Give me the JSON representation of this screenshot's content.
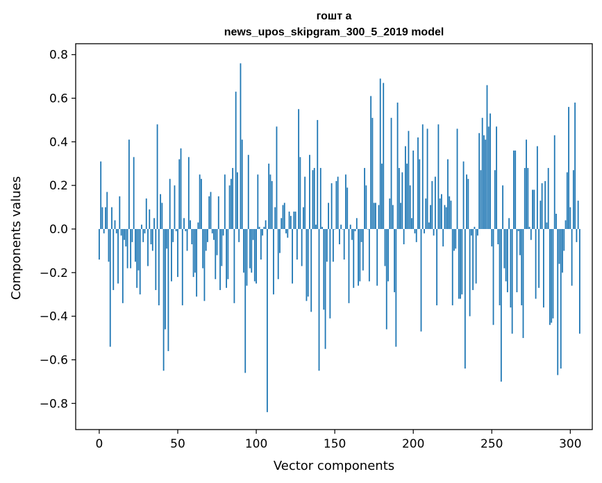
{
  "chart_data": {
    "type": "bar",
    "title_lines": [
      "гошт а",
      "news_upos_skipgram_300_5_2019 model"
    ],
    "xlabel": "Vector components",
    "ylabel": "Components values",
    "xlim": [
      -15,
      314
    ],
    "ylim": [
      -0.92,
      0.85
    ],
    "xticks": [
      0,
      50,
      100,
      150,
      200,
      250,
      300
    ],
    "yticks": [
      -0.8,
      -0.6,
      -0.4,
      -0.2,
      0.0,
      0.2,
      0.4,
      0.6,
      0.8
    ],
    "ytick_labels": [
      "−0.8",
      "−0.6",
      "−0.4",
      "−0.2",
      "0.0",
      "0.2",
      "0.4",
      "0.6",
      "0.8"
    ],
    "bar_color": "#1f77b4",
    "grid": false,
    "values": [
      -0.14,
      0.31,
      0.1,
      -0.02,
      0.1,
      0.17,
      -0.15,
      -0.54,
      0.1,
      -0.28,
      0.04,
      -0.02,
      -0.25,
      0.15,
      -0.03,
      -0.34,
      -0.05,
      -0.08,
      -0.18,
      0.41,
      -0.18,
      -0.06,
      0.33,
      -0.15,
      -0.27,
      -0.19,
      -0.3,
      0.02,
      -0.06,
      -0.02,
      0.14,
      -0.17,
      0.09,
      -0.07,
      -0.1,
      0.05,
      -0.28,
      0.48,
      -0.35,
      0.16,
      0.12,
      -0.65,
      -0.46,
      -0.09,
      -0.56,
      0.23,
      -0.24,
      -0.06,
      0.2,
      -0.01,
      -0.22,
      0.32,
      0.37,
      -0.35,
      0.05,
      -0.01,
      -0.1,
      0.33,
      0.04,
      -0.07,
      -0.22,
      -0.2,
      -0.31,
      0.03,
      0.25,
      0.23,
      -0.18,
      -0.33,
      -0.1,
      -0.06,
      0.15,
      0.17,
      -0.02,
      -0.05,
      -0.23,
      -0.12,
      0.15,
      -0.28,
      -0.17,
      -0.03,
      0.25,
      -0.27,
      -0.23,
      0.2,
      0.23,
      0.28,
      -0.34,
      0.63,
      0.26,
      -0.06,
      0.76,
      0.41,
      -0.2,
      -0.66,
      -0.26,
      0.34,
      -0.18,
      -0.2,
      -0.05,
      -0.24,
      -0.25,
      0.25,
      0.01,
      -0.14,
      -0.03,
      0.01,
      0.04,
      -0.84,
      0.3,
      0.25,
      0.22,
      -0.3,
      0.1,
      0.47,
      -0.23,
      -0.11,
      0.05,
      0.11,
      0.12,
      -0.02,
      -0.04,
      0.08,
      0.06,
      -0.25,
      0.08,
      0.08,
      -0.14,
      0.55,
      0.33,
      -0.17,
      0.1,
      0.24,
      -0.33,
      -0.31,
      0.34,
      -0.38,
      0.27,
      0.28,
      0.02,
      0.5,
      -0.65,
      0.28,
      0.01,
      -0.37,
      -0.55,
      -0.15,
      0.12,
      -0.41,
      0.21,
      -0.15,
      0.0,
      0.22,
      0.24,
      -0.07,
      0.02,
      0.0,
      -0.14,
      0.25,
      0.19,
      -0.34,
      0.02,
      -0.05,
      -0.27,
      -0.01,
      0.05,
      -0.26,
      -0.24,
      -0.06,
      -0.19,
      0.28,
      0.2,
      0.0,
      -0.24,
      0.61,
      0.51,
      0.12,
      0.12,
      -0.26,
      0.11,
      0.69,
      0.3,
      0.67,
      -0.17,
      -0.46,
      -0.24,
      0.14,
      0.51,
      0.11,
      -0.29,
      -0.54,
      0.58,
      0.28,
      0.12,
      0.26,
      -0.07,
      0.38,
      0.3,
      0.45,
      0.2,
      0.05,
      0.36,
      -0.02,
      -0.06,
      0.42,
      0.32,
      -0.47,
      0.48,
      -0.02,
      0.14,
      0.46,
      0.03,
      0.11,
      0.22,
      -0.03,
      0.24,
      -0.35,
      0.48,
      0.14,
      0.16,
      -0.08,
      0.11,
      0.1,
      0.32,
      0.15,
      0.13,
      -0.35,
      -0.1,
      -0.09,
      0.46,
      -0.32,
      -0.32,
      -0.3,
      0.31,
      -0.64,
      0.25,
      0.23,
      -0.4,
      -0.03,
      -0.28,
      0.01,
      -0.25,
      -0.03,
      0.44,
      0.27,
      0.51,
      0.43,
      0.41,
      0.66,
      0.47,
      0.53,
      -0.08,
      -0.44,
      0.27,
      0.47,
      -0.07,
      -0.35,
      -0.7,
      0.2,
      -0.18,
      -0.24,
      -0.29,
      0.05,
      -0.36,
      -0.48,
      0.36,
      0.36,
      -0.29,
      -0.01,
      -0.12,
      -0.35,
      -0.5,
      0.28,
      0.41,
      0.28,
      0.01,
      -0.05,
      0.18,
      0.18,
      -0.32,
      0.38,
      -0.27,
      0.13,
      0.21,
      -0.36,
      0.22,
      0.03,
      0.28,
      -0.44,
      -0.43,
      -0.41,
      0.43,
      0.07,
      -0.67,
      -0.16,
      -0.64,
      -0.2,
      -0.1,
      0.04,
      0.26,
      0.56,
      0.1,
      -0.26,
      0.27,
      0.58,
      -0.06,
      0.13,
      -0.48
    ]
  }
}
